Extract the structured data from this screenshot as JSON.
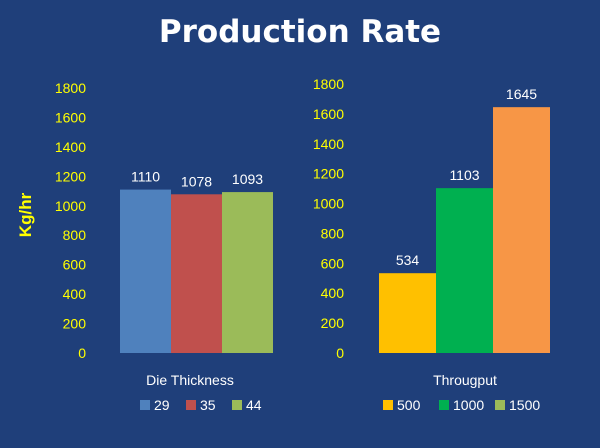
{
  "title": "Production Rate",
  "colors": {
    "background": "#1f3f7a",
    "axis_text": "#ffff00",
    "label_text": "#ffffff"
  },
  "chart_data": [
    {
      "type": "bar",
      "title": "",
      "xlabel": "Die Thickness",
      "ylabel": "Kg/hr",
      "ylim": [
        0,
        1800
      ],
      "yticks": [
        "0",
        "200",
        "400",
        "600",
        "800",
        "1000",
        "1200",
        "1400",
        "1600",
        "1800"
      ],
      "grid": false,
      "legend": "bottom",
      "series": [
        {
          "name": "29",
          "value": 1110,
          "label": "1110",
          "color": "#4f81bd"
        },
        {
          "name": "35",
          "value": 1078,
          "label": "1078",
          "color": "#c0504d"
        },
        {
          "name": "44",
          "value": 1093,
          "label": "1093",
          "color": "#9bbb59"
        }
      ]
    },
    {
      "type": "bar",
      "title": "",
      "xlabel": "Througput",
      "ylabel": "",
      "ylim": [
        0,
        1800
      ],
      "yticks": [
        "0",
        "200",
        "400",
        "600",
        "800",
        "1000",
        "1200",
        "1400",
        "1600",
        "1800"
      ],
      "grid": false,
      "legend": "bottom",
      "series": [
        {
          "name": "500",
          "value": 534,
          "label": "534",
          "color": "#ffc000"
        },
        {
          "name": "1000",
          "value": 1103,
          "label": "1103",
          "color": "#00b050"
        },
        {
          "name": "1500",
          "value": 1645,
          "label": "1645",
          "color": "#f79646"
        }
      ],
      "legend_swatch_colors": [
        "#ffc000",
        "#00b050",
        "#9bbb59"
      ]
    }
  ]
}
